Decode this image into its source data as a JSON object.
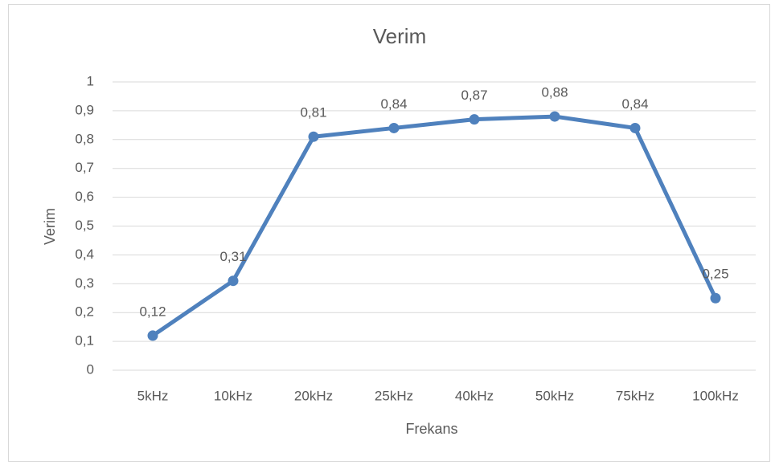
{
  "chart_data": {
    "type": "line",
    "title": "Verim",
    "x_label": "Frekans",
    "y_label": "Verim",
    "categories": [
      "5kHz",
      "10kHz",
      "20kHz",
      "25kHz",
      "40kHz",
      "50kHz",
      "75kHz",
      "100kHz"
    ],
    "values": [
      0.12,
      0.31,
      0.81,
      0.84,
      0.87,
      0.88,
      0.84,
      0.25
    ],
    "value_labels": [
      "0,12",
      "0,31",
      "0,81",
      "0,84",
      "0,87",
      "0,88",
      "0,84",
      "0,25"
    ],
    "color": "#4f81bd",
    "ylim": [
      0,
      1
    ],
    "yticks": [
      0,
      {
        "value": 0.1,
        "label": "0,1"
      },
      {
        "value": 0.2,
        "label": "0,2"
      },
      {
        "value": 0.3,
        "label": "0,3"
      },
      {
        "value": 0.4,
        "label": "0,4"
      },
      {
        "value": 0.5,
        "label": "0,5"
      },
      {
        "value": 0.6,
        "label": "0,6"
      },
      {
        "value": 0.7,
        "label": "0,7"
      },
      {
        "value": 0.8,
        "label": "0,8"
      },
      {
        "value": 0.9,
        "label": "0,9"
      },
      1
    ],
    "grid": true
  }
}
